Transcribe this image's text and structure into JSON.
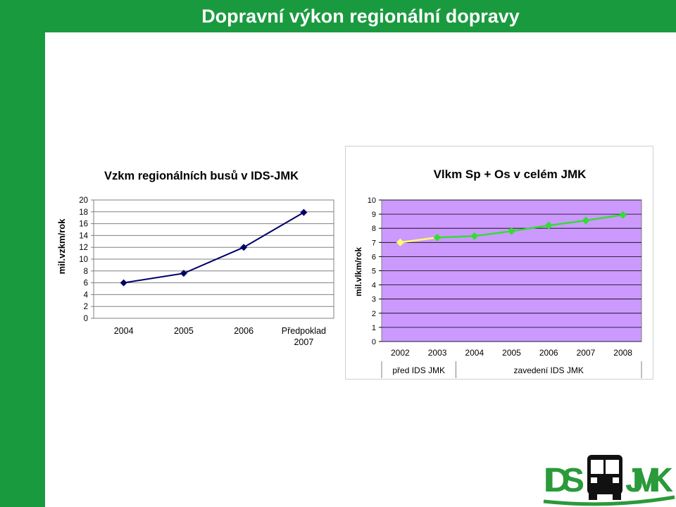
{
  "page": {
    "title": "Dopravní výkon regionální dopravy"
  },
  "colors": {
    "brand_green": "#1a9a3f",
    "line_navy": "#000066",
    "plot_purple": "#cc99ff",
    "series_yellow": "#ffff66",
    "series_green": "#33dd33"
  },
  "chart_data": [
    {
      "type": "line",
      "title": "Vzkm regionálních busů v IDS-JMK",
      "ylabel": "mil.vzkm/rok",
      "xlabel": "",
      "categories": [
        "2004",
        "2005",
        "2006",
        "Předpoklad 2007"
      ],
      "series": [
        {
          "values": [
            6,
            7.6,
            12,
            17.9
          ]
        }
      ],
      "ylim": [
        0,
        20
      ],
      "yticks": [
        0,
        2,
        4,
        6,
        8,
        10,
        12,
        14,
        16,
        18,
        20
      ],
      "grid": true,
      "legend": "none"
    },
    {
      "type": "line",
      "title": "Vlkm Sp + Os v celém JMK",
      "ylabel": "mil.vlkm/rok",
      "xlabel": "",
      "categories": [
        "2002",
        "2003",
        "2004",
        "2005",
        "2006",
        "2007",
        "2008"
      ],
      "series": [
        {
          "values": [
            7,
            7.35,
            null,
            null,
            null,
            null,
            null
          ]
        },
        {
          "values": [
            null,
            7.35,
            7.45,
            7.8,
            8.2,
            8.55,
            8.95
          ]
        }
      ],
      "ylim": [
        0,
        10
      ],
      "yticks": [
        0,
        1,
        2,
        3,
        4,
        5,
        6,
        7,
        8,
        9,
        10
      ],
      "grid": true,
      "period_labels": [
        "před IDS JMK",
        "zavedení IDS JMK"
      ],
      "legend": "none"
    }
  ],
  "logo": {
    "text_left": "IDS",
    "text_right": "JMK"
  }
}
